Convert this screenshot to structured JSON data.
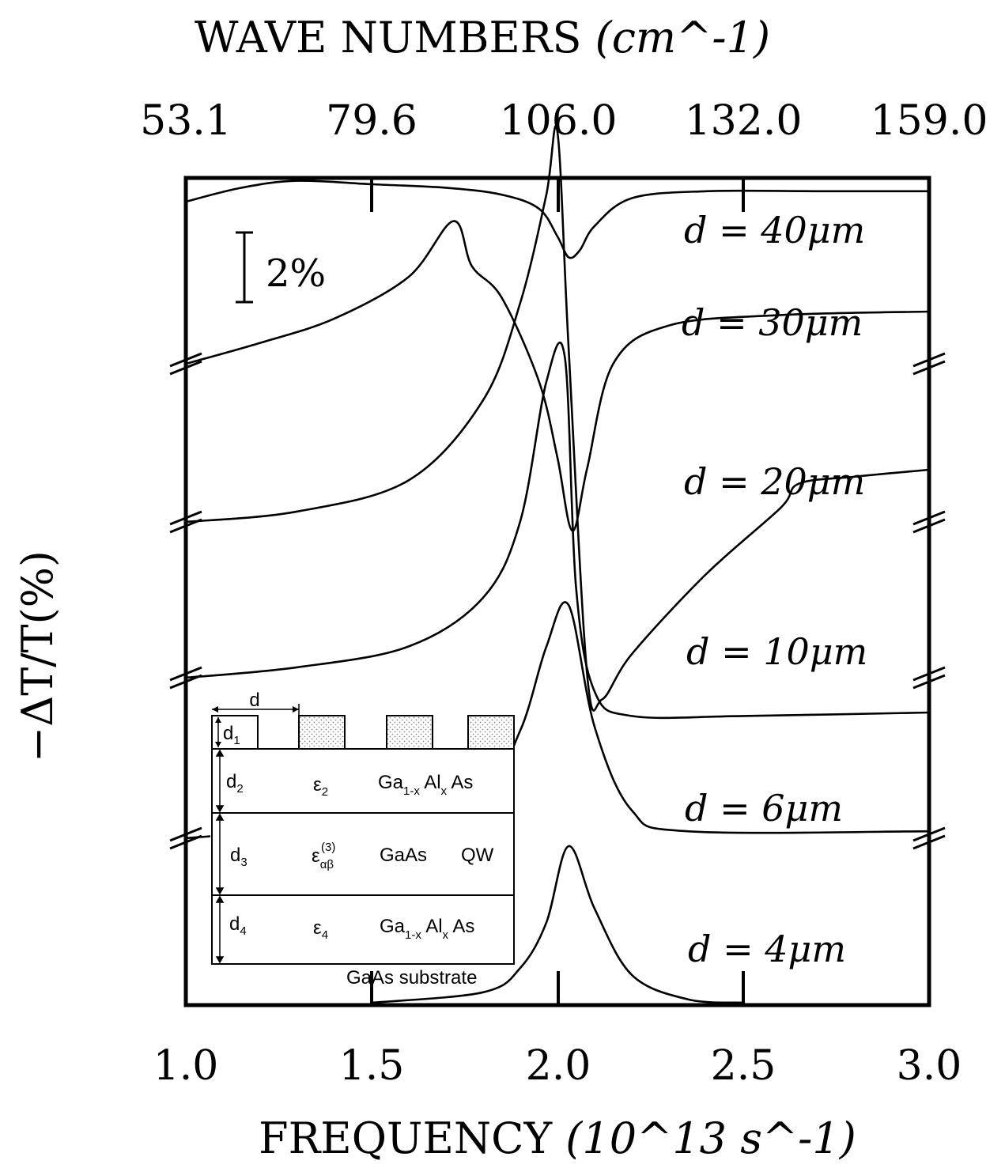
{
  "chart_data": {
    "type": "line",
    "xlabel_bottom": "FREQUENCY",
    "xlabel_bottom_unit": "(10^13 s^-1)",
    "xlabel_top": "WAVE NUMBERS",
    "xlabel_top_unit": "(cm^-1)",
    "ylabel": "−ΔT/T(%)",
    "xlim": [
      1.0,
      3.0
    ],
    "x_ticks": [
      "1.0",
      "1.5",
      "2.0",
      "2.5",
      "3.0"
    ],
    "top_ticks": [
      "53.1",
      "79.6",
      "106.0",
      "132.0",
      "159.0"
    ],
    "scale_bar": {
      "label": "2%",
      "value": 2
    },
    "series": [
      {
        "name": "d = 40μm",
        "type": "dip",
        "x": [
          1.0,
          1.15,
          1.3,
          1.5,
          1.7,
          1.85,
          1.95,
          2.0,
          2.03,
          2.06,
          2.1,
          2.2,
          2.4,
          2.7,
          3.0
        ],
        "y": [
          0.0,
          0.4,
          0.6,
          0.5,
          0.4,
          0.2,
          -0.2,
          -1.0,
          -1.6,
          -1.4,
          -0.7,
          0.1,
          0.3,
          0.3,
          0.3
        ]
      },
      {
        "name": "d = 30μm",
        "type": "dispersive",
        "x": [
          1.0,
          1.2,
          1.4,
          1.6,
          1.72,
          1.77,
          1.85,
          1.95,
          2.0,
          2.04,
          2.08,
          2.15,
          2.3,
          2.6,
          3.0
        ],
        "y": [
          0.0,
          0.6,
          1.3,
          2.5,
          4.1,
          2.8,
          1.9,
          -0.5,
          -2.7,
          -4.8,
          -3.0,
          0.0,
          1.1,
          1.4,
          1.5
        ]
      },
      {
        "name": "d = 20μm",
        "type": "dispersive",
        "x": [
          1.0,
          1.3,
          1.6,
          1.8,
          1.9,
          1.97,
          2.0,
          2.03,
          2.08,
          2.12,
          2.2,
          2.4,
          2.6,
          2.65,
          2.8,
          3.0
        ],
        "y": [
          0.0,
          0.3,
          1.2,
          3.5,
          6.3,
          9.4,
          11.2,
          5.0,
          -4.4,
          -5.1,
          -3.8,
          -1.5,
          0.4,
          1.1,
          1.3,
          1.5
        ]
      },
      {
        "name": "d = 10μm",
        "type": "peak",
        "x": [
          1.0,
          1.3,
          1.6,
          1.8,
          1.9,
          1.97,
          2.02,
          2.05,
          2.1,
          2.2,
          2.5,
          3.0
        ],
        "y": [
          0.0,
          0.3,
          0.9,
          2.3,
          4.5,
          8.5,
          9.2,
          2.6,
          -0.4,
          -1.1,
          -1.1,
          -1.0
        ]
      },
      {
        "name": "d = 6μm",
        "type": "peak",
        "x": [
          1.0,
          1.5,
          1.8,
          1.9,
          1.97,
          2.03,
          2.1,
          2.2,
          2.35,
          3.0
        ],
        "y": [
          0.0,
          0.5,
          1.5,
          3.1,
          5.5,
          6.7,
          3.2,
          0.8,
          0.2,
          0.2
        ]
      },
      {
        "name": "d = 4μm",
        "type": "peak",
        "x": [
          1.5,
          1.8,
          1.9,
          1.97,
          2.03,
          2.1,
          2.2,
          2.35,
          2.5
        ],
        "y": [
          0.0,
          0.3,
          1.0,
          2.3,
          4.5,
          2.7,
          0.8,
          0.1,
          0.0
        ]
      }
    ],
    "grid": false,
    "legend": "inline labels on right"
  },
  "inset": {
    "d_label": "d",
    "d1_label": "d1",
    "layers": [
      {
        "thickness": "d2",
        "eps": "ε2",
        "material": "Ga1-xAlx As"
      },
      {
        "thickness": "d3",
        "eps": "εαβ(3)",
        "material": "GaAs",
        "extra": "QW"
      },
      {
        "thickness": "d4",
        "eps": "ε4",
        "material": "Ga1-xAlx As"
      }
    ],
    "substrate": "GaAs  substrate"
  }
}
